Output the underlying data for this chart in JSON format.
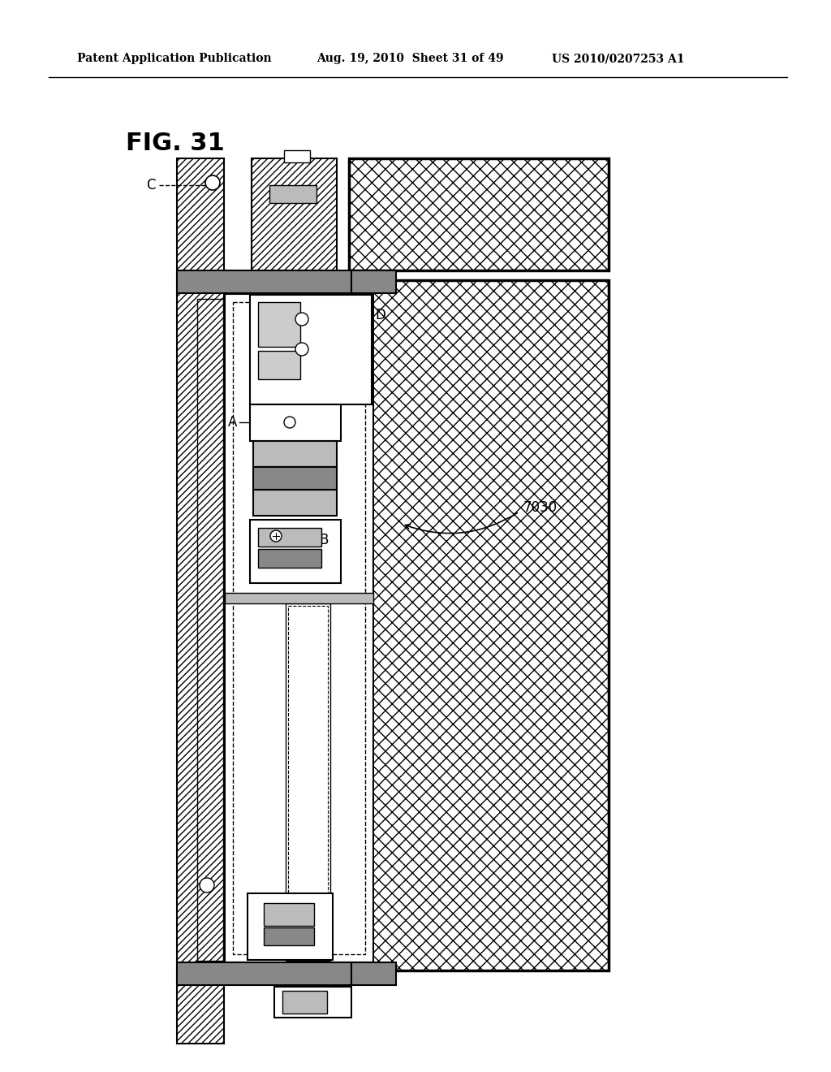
{
  "title": "FIG. 31",
  "header_left": "Patent Application Publication",
  "header_mid": "Aug. 19, 2010  Sheet 31 of 49",
  "header_right": "US 2010/0207253 A1",
  "label_7030": "7030",
  "label_A": "A",
  "label_B": "B",
  "label_C": "C",
  "label_D": "D",
  "bg_color": "#ffffff",
  "line_color": "#000000",
  "hatch_diagonal": "////",
  "hatch_cross": "xxxx"
}
